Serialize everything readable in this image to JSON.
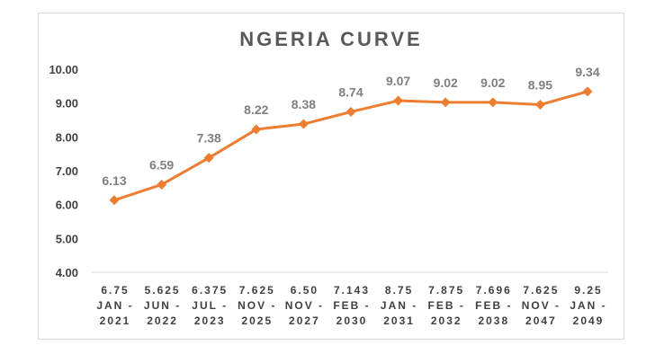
{
  "chart_data": {
    "type": "line",
    "title": "NGERIA CURVE",
    "xlabel": "",
    "ylabel": "",
    "ylim": [
      4.0,
      10.0
    ],
    "y_ticks": [
      "4.00",
      "5.00",
      "6.00",
      "7.00",
      "8.00",
      "9.00",
      "10.00"
    ],
    "categories": [
      [
        "6.75",
        "JAN -",
        "2021"
      ],
      [
        "5.625",
        "JUN -",
        "2022"
      ],
      [
        "6.375",
        "JUL -",
        "2023"
      ],
      [
        "7.625",
        "NOV -",
        "2025"
      ],
      [
        "6.50",
        "NOV -",
        "2027"
      ],
      [
        "7.143",
        "FEB -",
        "2030"
      ],
      [
        "8.75",
        "JAN -",
        "2031"
      ],
      [
        "7.875",
        "FEB -",
        "2032"
      ],
      [
        "7.696",
        "FEB -",
        "2038"
      ],
      [
        "7.625",
        "NOV -",
        "2047"
      ],
      [
        "9.25",
        "JAN -",
        "2049"
      ]
    ],
    "series": [
      {
        "values": [
          6.13,
          6.59,
          7.38,
          8.22,
          8.38,
          8.74,
          9.07,
          9.02,
          9.02,
          8.95,
          9.34
        ],
        "labels": [
          "6.13",
          "6.59",
          "7.38",
          "8.22",
          "8.38",
          "8.74",
          "9.07",
          "9.02",
          "9.02",
          "8.95",
          "9.34"
        ]
      }
    ],
    "grid": false,
    "legend": "none",
    "colors": {
      "line": "#ed7d31",
      "marker": "#ed7d31",
      "data_label": "#7f7f7f",
      "axis": "#d9d9d9"
    }
  }
}
